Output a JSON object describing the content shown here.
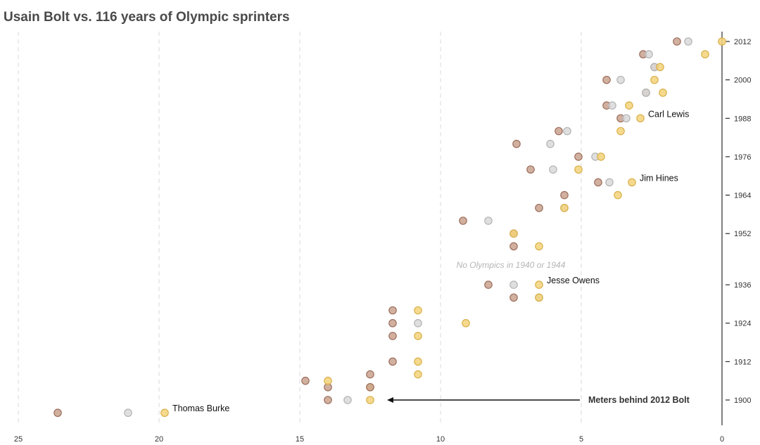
{
  "chart_data": {
    "type": "scatter",
    "title": "Usain Bolt vs. 116 years of Olympic sprinters",
    "xlabel": "",
    "ylabel": "",
    "x_axis": {
      "range": [
        25,
        0
      ],
      "ticks": [
        25,
        20,
        15,
        10,
        5,
        0
      ],
      "reversed": true
    },
    "y_axis": {
      "range": [
        1893,
        2015
      ],
      "ticks": [
        1900,
        1912,
        1924,
        1936,
        1952,
        1964,
        1976,
        1988,
        2000,
        2012
      ],
      "position": "right"
    },
    "grid": "vertical dashed",
    "colors": {
      "gold": "#f3d27a",
      "silver": "#d9d9d9",
      "bronze": "#c9a28f"
    },
    "color_strokes": {
      "gold": "#d9b04a",
      "silver": "#b3b3b3",
      "bronze": "#9c6e5c"
    },
    "medals": [
      {
        "year": 1896,
        "gold": 19.8,
        "silver": 21.1,
        "bronze": 23.6
      },
      {
        "year": 1900,
        "gold": 12.5,
        "silver": 13.3,
        "bronze": 14.0
      },
      {
        "year": 1904,
        "gold": 12.5,
        "silver": null,
        "bronze": 14.0
      },
      {
        "year": 1906,
        "gold": 14.0,
        "silver": null,
        "bronze": 14.8
      },
      {
        "year": 1904,
        "gold": null,
        "silver": null,
        "bronze": 12.5
      },
      {
        "year": 1908,
        "gold": 10.8,
        "silver": null,
        "bronze": 12.5
      },
      {
        "year": 1912,
        "gold": 10.8,
        "silver": null,
        "bronze": 11.7
      },
      {
        "year": 1920,
        "gold": 10.8,
        "silver": null,
        "bronze": 11.7
      },
      {
        "year": 1924,
        "gold": 9.1,
        "silver": 10.8,
        "bronze": 11.7
      },
      {
        "year": 1928,
        "gold": 10.8,
        "silver": null,
        "bronze": 11.7
      },
      {
        "year": 1932,
        "gold": 6.5,
        "silver": 6.5,
        "bronze": 7.4
      },
      {
        "year": 1936,
        "gold": 6.5,
        "silver": 7.4,
        "bronze": 8.3
      },
      {
        "year": 1948,
        "gold": 6.5,
        "silver": null,
        "bronze": 7.4
      },
      {
        "year": 1952,
        "gold": 7.4,
        "silver": null,
        "bronze": 7.4
      },
      {
        "year": 1956,
        "gold": null,
        "silver": 8.3,
        "bronze": 9.2
      },
      {
        "year": 1960,
        "gold": 5.6,
        "silver": 5.6,
        "bronze": 6.5
      },
      {
        "year": 1964,
        "gold": 3.7,
        "silver": null,
        "bronze": 5.6
      },
      {
        "year": 1968,
        "gold": 3.2,
        "silver": 4.0,
        "bronze": 4.4
      },
      {
        "year": 1972,
        "gold": 5.1,
        "silver": 6.0,
        "bronze": 6.8
      },
      {
        "year": 1976,
        "gold": 4.3,
        "silver": 4.5,
        "bronze": 5.1
      },
      {
        "year": 1980,
        "gold": null,
        "silver": 6.1,
        "bronze": 7.3
      },
      {
        "year": 1984,
        "gold": 3.6,
        "silver": 5.5,
        "bronze": 5.8
      },
      {
        "year": 1988,
        "gold": 2.9,
        "silver": 3.4,
        "bronze": 3.6
      },
      {
        "year": 1992,
        "gold": 3.3,
        "silver": 3.9,
        "bronze": 4.1
      },
      {
        "year": 1996,
        "gold": 2.1,
        "silver": 2.7,
        "bronze": 2.7
      },
      {
        "year": 2000,
        "gold": 2.4,
        "silver": 3.6,
        "bronze": 4.1
      },
      {
        "year": 2004,
        "gold": 2.2,
        "silver": 2.4,
        "bronze": 2.4
      },
      {
        "year": 2008,
        "gold": 0.6,
        "silver": 2.6,
        "bronze": 2.8
      },
      {
        "year": 2012,
        "gold": 0.0,
        "silver": 1.2,
        "bronze": 1.6
      }
    ],
    "annotations": [
      {
        "text": "Carl Lewis",
        "x": 2.9,
        "year": 1988
      },
      {
        "text": "Jim Hines",
        "x": 3.2,
        "year": 1968
      },
      {
        "text": "Jesse Owens",
        "x": 6.5,
        "year": 1936
      },
      {
        "text": "Thomas Burke",
        "x": 19.8,
        "year": 1896
      }
    ],
    "note": {
      "text": "No Olympics in 1940 or 1944",
      "x": 10.0,
      "year": 1942
    },
    "arrow": {
      "label": "Meters behind 2012 Bolt",
      "from_x": 5.0,
      "to_x": 12.0,
      "year": 1900
    }
  }
}
